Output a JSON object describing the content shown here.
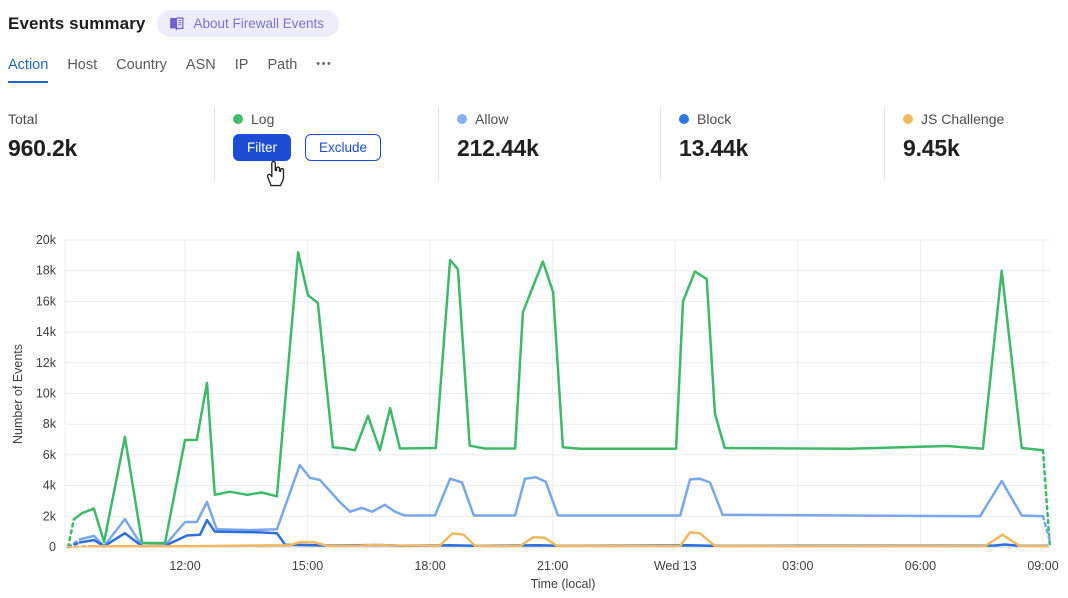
{
  "header": {
    "title": "Events summary",
    "about_label": "About Firewall Events",
    "badge_bg": "#edecfa",
    "badge_fg": "#7b74cb",
    "badge_icon": "book-icon"
  },
  "tabs": {
    "items": [
      {
        "label": "Action",
        "active": true
      },
      {
        "label": "Host",
        "active": false
      },
      {
        "label": "Country",
        "active": false
      },
      {
        "label": "ASN",
        "active": false
      },
      {
        "label": "IP",
        "active": false
      },
      {
        "label": "Path",
        "active": false
      }
    ],
    "more_label": "•••",
    "active_color": "#2166cc"
  },
  "stats": {
    "total": {
      "label": "Total",
      "value": "960.2k"
    },
    "log": {
      "label": "Log",
      "color": "#41bb6e",
      "filter_label": "Filter",
      "exclude_label": "Exclude",
      "button_color": "#1c4dd4"
    },
    "allow": {
      "label": "Allow",
      "value": "212.44k",
      "color": "#85b0f1"
    },
    "block": {
      "label": "Block",
      "value": "13.44k",
      "color": "#2e75e6"
    },
    "js_challenge": {
      "label": "JS Challenge",
      "value": "9.45k",
      "color": "#f0ba62"
    }
  },
  "chart_data": {
    "type": "line",
    "title": "",
    "xlabel": "Time (local)",
    "ylabel": "Number of Events",
    "values_in": "events",
    "x_unit": "hours since Tue 09:00 local",
    "xlim": [
      0.06,
      24.25
    ],
    "ylim": [
      0,
      20000
    ],
    "grid": true,
    "legend_position": "stats-row-above-chart",
    "y_ticks": [
      0,
      2000,
      4000,
      6000,
      8000,
      10000,
      12000,
      14000,
      16000,
      18000,
      20000
    ],
    "x_ticks": [
      {
        "t": 3,
        "label": "12:00"
      },
      {
        "t": 6,
        "label": "15:00"
      },
      {
        "t": 9,
        "label": "18:00"
      },
      {
        "t": 12,
        "label": "21:00"
      },
      {
        "t": 15,
        "label": "Wed 13"
      },
      {
        "t": 18,
        "label": "03:00"
      },
      {
        "t": 21,
        "label": "06:00"
      },
      {
        "t": 24,
        "label": "09:00"
      }
    ],
    "series": [
      {
        "name": "Log",
        "color": "#3eb96a",
        "width": 2.5,
        "dash_head": 1,
        "dash_tail": 1,
        "points": [
          [
            0.14,
            0
          ],
          [
            0.28,
            1800
          ],
          [
            0.48,
            2200
          ],
          [
            0.77,
            2500
          ],
          [
            1.02,
            330
          ],
          [
            1.53,
            7170
          ],
          [
            1.95,
            260
          ],
          [
            2.51,
            260
          ],
          [
            3.0,
            6970
          ],
          [
            3.29,
            6970
          ],
          [
            3.54,
            10700
          ],
          [
            3.73,
            3400
          ],
          [
            4.1,
            3600
          ],
          [
            4.52,
            3400
          ],
          [
            4.88,
            3550
          ],
          [
            5.25,
            3300
          ],
          [
            5.77,
            19200
          ],
          [
            6.01,
            16400
          ],
          [
            6.25,
            15900
          ],
          [
            6.62,
            6500
          ],
          [
            6.92,
            6420
          ],
          [
            7.16,
            6300
          ],
          [
            7.48,
            8550
          ],
          [
            7.77,
            6300
          ],
          [
            8.02,
            9050
          ],
          [
            8.26,
            6420
          ],
          [
            9.14,
            6450
          ],
          [
            9.49,
            18700
          ],
          [
            9.68,
            18100
          ],
          [
            9.97,
            6600
          ],
          [
            10.34,
            6420
          ],
          [
            11.08,
            6420
          ],
          [
            11.27,
            15300
          ],
          [
            11.76,
            18600
          ],
          [
            12.01,
            16600
          ],
          [
            12.25,
            6500
          ],
          [
            12.67,
            6400
          ],
          [
            15.02,
            6400
          ],
          [
            15.19,
            16000
          ],
          [
            15.48,
            17950
          ],
          [
            15.77,
            17450
          ],
          [
            15.97,
            8700
          ],
          [
            16.21,
            6450
          ],
          [
            19.27,
            6400
          ],
          [
            21.65,
            6580
          ],
          [
            22.53,
            6400
          ],
          [
            22.99,
            18000
          ],
          [
            23.48,
            6450
          ],
          [
            24.0,
            6300
          ],
          [
            24.17,
            0
          ]
        ]
      },
      {
        "name": "Allow",
        "color": "#79a7ec",
        "width": 2.5,
        "dash_head": 1,
        "dash_tail": 1,
        "points": [
          [
            0.14,
            0
          ],
          [
            0.43,
            500
          ],
          [
            0.77,
            720
          ],
          [
            1.02,
            60
          ],
          [
            1.53,
            1820
          ],
          [
            1.95,
            60
          ],
          [
            2.51,
            100
          ],
          [
            3.0,
            1630
          ],
          [
            3.29,
            1630
          ],
          [
            3.54,
            2930
          ],
          [
            3.78,
            1150
          ],
          [
            4.59,
            1100
          ],
          [
            5.25,
            1150
          ],
          [
            5.81,
            5340
          ],
          [
            6.06,
            4500
          ],
          [
            6.3,
            4370
          ],
          [
            6.79,
            2930
          ],
          [
            7.04,
            2300
          ],
          [
            7.33,
            2550
          ],
          [
            7.58,
            2300
          ],
          [
            7.89,
            2750
          ],
          [
            8.14,
            2300
          ],
          [
            8.38,
            2050
          ],
          [
            9.12,
            2050
          ],
          [
            9.49,
            4450
          ],
          [
            9.78,
            4200
          ],
          [
            10.07,
            2050
          ],
          [
            11.08,
            2050
          ],
          [
            11.32,
            4450
          ],
          [
            11.59,
            4550
          ],
          [
            11.83,
            4250
          ],
          [
            12.13,
            2050
          ],
          [
            15.12,
            2050
          ],
          [
            15.36,
            4400
          ],
          [
            15.6,
            4450
          ],
          [
            15.85,
            4200
          ],
          [
            16.16,
            2100
          ],
          [
            22.46,
            2000
          ],
          [
            22.99,
            4300
          ],
          [
            23.48,
            2050
          ],
          [
            24.0,
            2000
          ],
          [
            24.17,
            400
          ]
        ]
      },
      {
        "name": "Block",
        "color": "#2e6fdd",
        "width": 2.5,
        "dash_head": 1,
        "dash_tail": 0,
        "points": [
          [
            0.14,
            0
          ],
          [
            0.43,
            300
          ],
          [
            0.77,
            450
          ],
          [
            1.02,
            50
          ],
          [
            1.53,
            900
          ],
          [
            1.95,
            50
          ],
          [
            2.51,
            80
          ],
          [
            3.05,
            750
          ],
          [
            3.37,
            800
          ],
          [
            3.54,
            1750
          ],
          [
            3.73,
            1000
          ],
          [
            4.84,
            950
          ],
          [
            5.25,
            900
          ],
          [
            5.45,
            150
          ],
          [
            6.55,
            100
          ],
          [
            7.77,
            130
          ],
          [
            8.26,
            80
          ],
          [
            9.49,
            120
          ],
          [
            10.1,
            80
          ],
          [
            11.69,
            120
          ],
          [
            12.18,
            80
          ],
          [
            15.36,
            110
          ],
          [
            15.85,
            80
          ],
          [
            22.82,
            100
          ],
          [
            23.06,
            160
          ],
          [
            23.48,
            80
          ],
          [
            24.1,
            80
          ]
        ]
      },
      {
        "name": "JS Challenge",
        "color": "#f0b960",
        "width": 2.5,
        "dash_head": 1,
        "dash_tail": 0,
        "points": [
          [
            0.14,
            0
          ],
          [
            0.68,
            60
          ],
          [
            3.37,
            60
          ],
          [
            5.57,
            120
          ],
          [
            5.81,
            320
          ],
          [
            6.18,
            300
          ],
          [
            6.5,
            70
          ],
          [
            7.28,
            90
          ],
          [
            7.65,
            140
          ],
          [
            8.02,
            100
          ],
          [
            9.24,
            90
          ],
          [
            9.54,
            880
          ],
          [
            9.81,
            820
          ],
          [
            10.1,
            70
          ],
          [
            11.2,
            70
          ],
          [
            11.52,
            640
          ],
          [
            11.81,
            600
          ],
          [
            12.1,
            70
          ],
          [
            15.12,
            70
          ],
          [
            15.36,
            950
          ],
          [
            15.6,
            900
          ],
          [
            15.97,
            70
          ],
          [
            18.05,
            60
          ],
          [
            22.58,
            70
          ],
          [
            23.01,
            800
          ],
          [
            23.43,
            70
          ],
          [
            24.1,
            60
          ]
        ]
      }
    ]
  }
}
